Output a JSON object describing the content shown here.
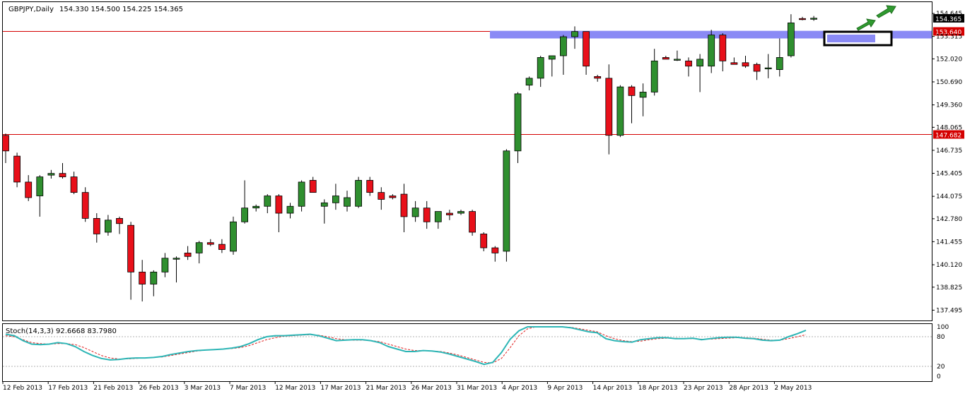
{
  "chart_data": {
    "type": "candlestick",
    "symbol_header": "GBPJPY,Daily",
    "ohlc_header": "154.330 154.500 154.225 154.365",
    "price_axis": {
      "min": 136.9,
      "max": 155.3,
      "ticks": [
        "154.645",
        "153.315",
        "152.020",
        "150.690",
        "149.360",
        "148.065",
        "146.735",
        "145.405",
        "144.075",
        "142.780",
        "141.455",
        "140.120",
        "138.825",
        "137.495"
      ]
    },
    "current_price_label": "154.365",
    "levels": [
      {
        "label": "153.640",
        "price": 153.64
      },
      {
        "label": "147.682",
        "price": 147.682
      }
    ],
    "zone": {
      "from": 153.2,
      "to": 153.64
    },
    "candles": [
      {
        "o": 147.6,
        "h": 147.7,
        "l": 146.0,
        "c": 146.7
      },
      {
        "o": 146.4,
        "h": 146.6,
        "l": 144.6,
        "c": 144.9
      },
      {
        "o": 144.9,
        "h": 145.3,
        "l": 143.8,
        "c": 144.0
      },
      {
        "o": 144.1,
        "h": 145.3,
        "l": 142.9,
        "c": 145.2
      },
      {
        "o": 145.3,
        "h": 145.6,
        "l": 145.1,
        "c": 145.4
      },
      {
        "o": 145.4,
        "h": 146.0,
        "l": 145.1,
        "c": 145.2
      },
      {
        "o": 145.2,
        "h": 145.5,
        "l": 144.2,
        "c": 144.3
      },
      {
        "o": 144.3,
        "h": 144.6,
        "l": 142.6,
        "c": 142.8
      },
      {
        "o": 142.8,
        "h": 143.1,
        "l": 141.4,
        "c": 141.9
      },
      {
        "o": 142.0,
        "h": 143.0,
        "l": 141.8,
        "c": 142.7
      },
      {
        "o": 142.8,
        "h": 142.9,
        "l": 141.9,
        "c": 142.5
      },
      {
        "o": 142.4,
        "h": 142.6,
        "l": 138.1,
        "c": 139.7
      },
      {
        "o": 139.7,
        "h": 140.4,
        "l": 138.0,
        "c": 139.0
      },
      {
        "o": 139.0,
        "h": 139.8,
        "l": 138.3,
        "c": 139.7
      },
      {
        "o": 139.7,
        "h": 140.8,
        "l": 139.4,
        "c": 140.5
      },
      {
        "o": 140.5,
        "h": 140.6,
        "l": 139.1,
        "c": 140.5
      },
      {
        "o": 140.8,
        "h": 141.2,
        "l": 140.4,
        "c": 140.6
      },
      {
        "o": 140.8,
        "h": 141.5,
        "l": 140.2,
        "c": 141.4
      },
      {
        "o": 141.4,
        "h": 141.6,
        "l": 141.2,
        "c": 141.3
      },
      {
        "o": 141.3,
        "h": 141.6,
        "l": 140.8,
        "c": 141.0
      },
      {
        "o": 140.9,
        "h": 142.9,
        "l": 140.7,
        "c": 142.6
      },
      {
        "o": 142.6,
        "h": 145.0,
        "l": 142.5,
        "c": 143.4
      },
      {
        "o": 143.4,
        "h": 143.6,
        "l": 143.2,
        "c": 143.5
      },
      {
        "o": 143.5,
        "h": 144.2,
        "l": 143.1,
        "c": 144.1
      },
      {
        "o": 144.1,
        "h": 144.2,
        "l": 142.0,
        "c": 143.1
      },
      {
        "o": 143.1,
        "h": 143.7,
        "l": 142.8,
        "c": 143.5
      },
      {
        "o": 143.5,
        "h": 145.0,
        "l": 143.2,
        "c": 144.9
      },
      {
        "o": 145.0,
        "h": 145.2,
        "l": 144.3,
        "c": 144.3
      },
      {
        "o": 143.5,
        "h": 143.9,
        "l": 142.5,
        "c": 143.7
      },
      {
        "o": 143.7,
        "h": 144.8,
        "l": 143.3,
        "c": 144.1
      },
      {
        "o": 143.5,
        "h": 144.4,
        "l": 143.2,
        "c": 144.0
      },
      {
        "o": 143.5,
        "h": 145.2,
        "l": 143.4,
        "c": 145.0
      },
      {
        "o": 145.0,
        "h": 145.2,
        "l": 144.1,
        "c": 144.3
      },
      {
        "o": 144.3,
        "h": 144.6,
        "l": 143.3,
        "c": 143.9
      },
      {
        "o": 144.1,
        "h": 144.2,
        "l": 143.9,
        "c": 144.0
      },
      {
        "o": 144.2,
        "h": 144.8,
        "l": 142.0,
        "c": 142.9
      },
      {
        "o": 142.9,
        "h": 143.8,
        "l": 142.6,
        "c": 143.4
      },
      {
        "o": 143.4,
        "h": 143.8,
        "l": 142.2,
        "c": 142.6
      },
      {
        "o": 142.6,
        "h": 143.2,
        "l": 142.2,
        "c": 143.2
      },
      {
        "o": 143.1,
        "h": 143.3,
        "l": 142.7,
        "c": 143.0
      },
      {
        "o": 143.1,
        "h": 143.3,
        "l": 143.0,
        "c": 143.2
      },
      {
        "o": 143.2,
        "h": 143.3,
        "l": 141.8,
        "c": 142.0
      },
      {
        "o": 141.9,
        "h": 142.0,
        "l": 140.9,
        "c": 141.1
      },
      {
        "o": 141.1,
        "h": 141.2,
        "l": 140.3,
        "c": 140.8
      },
      {
        "o": 140.9,
        "h": 146.8,
        "l": 140.3,
        "c": 146.7
      },
      {
        "o": 146.7,
        "h": 150.1,
        "l": 146.0,
        "c": 150.0
      },
      {
        "o": 150.5,
        "h": 151.0,
        "l": 150.2,
        "c": 150.9
      },
      {
        "o": 150.9,
        "h": 152.2,
        "l": 150.4,
        "c": 152.1
      },
      {
        "o": 152.0,
        "h": 152.1,
        "l": 151.0,
        "c": 152.2
      },
      {
        "o": 152.2,
        "h": 153.4,
        "l": 151.1,
        "c": 153.3
      },
      {
        "o": 153.3,
        "h": 153.9,
        "l": 152.6,
        "c": 153.6
      },
      {
        "o": 153.6,
        "h": 153.6,
        "l": 151.1,
        "c": 151.6
      },
      {
        "o": 151.0,
        "h": 151.1,
        "l": 150.7,
        "c": 150.9
      },
      {
        "o": 150.9,
        "h": 151.7,
        "l": 146.5,
        "c": 147.6
      },
      {
        "o": 147.6,
        "h": 150.5,
        "l": 147.5,
        "c": 150.4
      },
      {
        "o": 150.4,
        "h": 150.5,
        "l": 148.3,
        "c": 149.9
      },
      {
        "o": 149.8,
        "h": 150.6,
        "l": 148.7,
        "c": 150.1
      },
      {
        "o": 150.1,
        "h": 152.6,
        "l": 149.9,
        "c": 151.9
      },
      {
        "o": 152.1,
        "h": 152.2,
        "l": 152.0,
        "c": 152.0
      },
      {
        "o": 152.0,
        "h": 152.5,
        "l": 151.9,
        "c": 152.0
      },
      {
        "o": 151.9,
        "h": 152.1,
        "l": 151.0,
        "c": 151.6
      },
      {
        "o": 151.6,
        "h": 152.3,
        "l": 150.1,
        "c": 152.0
      },
      {
        "o": 151.6,
        "h": 153.7,
        "l": 151.2,
        "c": 153.4
      },
      {
        "o": 153.4,
        "h": 153.5,
        "l": 151.3,
        "c": 151.9
      },
      {
        "o": 151.8,
        "h": 152.1,
        "l": 151.7,
        "c": 151.7
      },
      {
        "o": 151.8,
        "h": 152.2,
        "l": 151.5,
        "c": 151.6
      },
      {
        "o": 151.7,
        "h": 151.8,
        "l": 150.8,
        "c": 151.3
      },
      {
        "o": 151.5,
        "h": 152.3,
        "l": 150.9,
        "c": 151.5
      },
      {
        "o": 151.4,
        "h": 153.2,
        "l": 151.0,
        "c": 152.1
      },
      {
        "o": 152.2,
        "h": 154.6,
        "l": 152.1,
        "c": 154.1
      },
      {
        "o": 154.35,
        "h": 154.45,
        "l": 154.25,
        "c": 154.33
      },
      {
        "o": 154.33,
        "h": 154.5,
        "l": 154.22,
        "c": 154.37
      }
    ],
    "stochastic": {
      "header": "Stoch(14,3,3) 92.6668 83.7980",
      "levels": [
        {
          "label": "100",
          "value": 100
        },
        {
          "label": "80",
          "value": 80
        },
        {
          "label": "20",
          "value": 20
        },
        {
          "label": "0",
          "value": 0
        }
      ],
      "main": [
        85,
        82,
        72,
        65,
        64,
        65,
        68,
        66,
        60,
        50,
        42,
        36,
        33,
        34,
        36,
        37,
        37,
        38,
        40,
        44,
        47,
        50,
        52,
        53,
        54,
        55,
        57,
        60,
        66,
        74,
        80,
        82,
        82,
        83,
        84,
        85,
        82,
        77,
        72,
        73,
        74,
        74,
        72,
        68,
        60,
        55,
        50,
        50,
        52,
        51,
        49,
        45,
        40,
        35,
        30,
        24,
        28,
        48,
        75,
        92,
        100,
        100,
        100,
        100,
        100,
        98,
        94,
        90,
        88,
        76,
        72,
        70,
        69,
        74,
        76,
        78,
        78,
        76,
        76,
        77,
        74,
        76,
        78,
        79,
        79,
        77,
        76,
        73,
        72,
        73,
        80,
        86,
        93
      ],
      "signal": [
        82,
        80,
        74,
        68,
        66,
        65,
        66,
        66,
        64,
        58,
        50,
        42,
        37,
        35,
        35,
        36,
        37,
        38,
        39,
        42,
        45,
        48,
        51,
        53,
        54,
        55,
        56,
        58,
        62,
        68,
        74,
        78,
        81,
        82,
        83,
        84,
        83,
        80,
        76,
        74,
        73,
        73,
        72,
        70,
        65,
        60,
        55,
        52,
        52,
        51,
        50,
        47,
        43,
        38,
        33,
        28,
        27,
        36,
        58,
        82,
        96,
        100,
        100,
        100,
        100,
        99,
        96,
        93,
        90,
        82,
        76,
        72,
        70,
        71,
        74,
        76,
        77,
        77,
        76,
        76,
        75,
        75,
        76,
        77,
        78,
        78,
        77,
        75,
        73,
        73,
        76,
        80,
        84
      ]
    },
    "x_labels": [
      "12 Feb 2013",
      "17 Feb 2013",
      "21 Feb 2013",
      "26 Feb 2013",
      "3 Mar 2013",
      "7 Mar 2013",
      "12 Mar 2013",
      "17 Mar 2013",
      "21 Mar 2013",
      "26 Mar 2013",
      "31 Mar 2013",
      "4 Apr 2013",
      "9 Apr 2013",
      "14 Apr 2013",
      "18 Apr 2013",
      "23 Apr 2013",
      "28 Apr 2013",
      "2 May 2013"
    ],
    "colors": {
      "bull": "#2f8f2f",
      "bear": "#e8101a",
      "stoch_main": "#2cb5b5",
      "stoch_signal": "#e02020",
      "level": "#d40000",
      "zone": "#8a8af5"
    }
  }
}
